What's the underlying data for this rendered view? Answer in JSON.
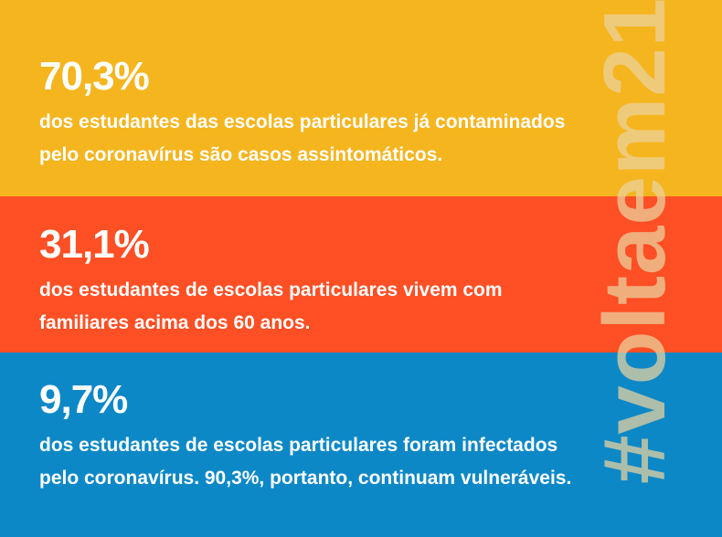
{
  "colors": {
    "band_yellow": "#F5B51F",
    "band_orange": "#FF4F24",
    "band_blue": "#0D88C6",
    "text": "#FFFFFF"
  },
  "hashtag": "#voltaem21",
  "stats": [
    {
      "value": "70,3%",
      "description": "dos estudantes das escolas particulares já contaminados\npelo coronavírus são casos assintomáticos."
    },
    {
      "value": "31,1%",
      "description": "dos estudantes de escolas particulares vivem com\nfamiliares acima dos 60 anos."
    },
    {
      "value": "9,7%",
      "description": "dos estudantes de escolas  particulares foram infectados\npelo coronavírus. 90,3%, portanto, continuam vulneráveis."
    }
  ]
}
